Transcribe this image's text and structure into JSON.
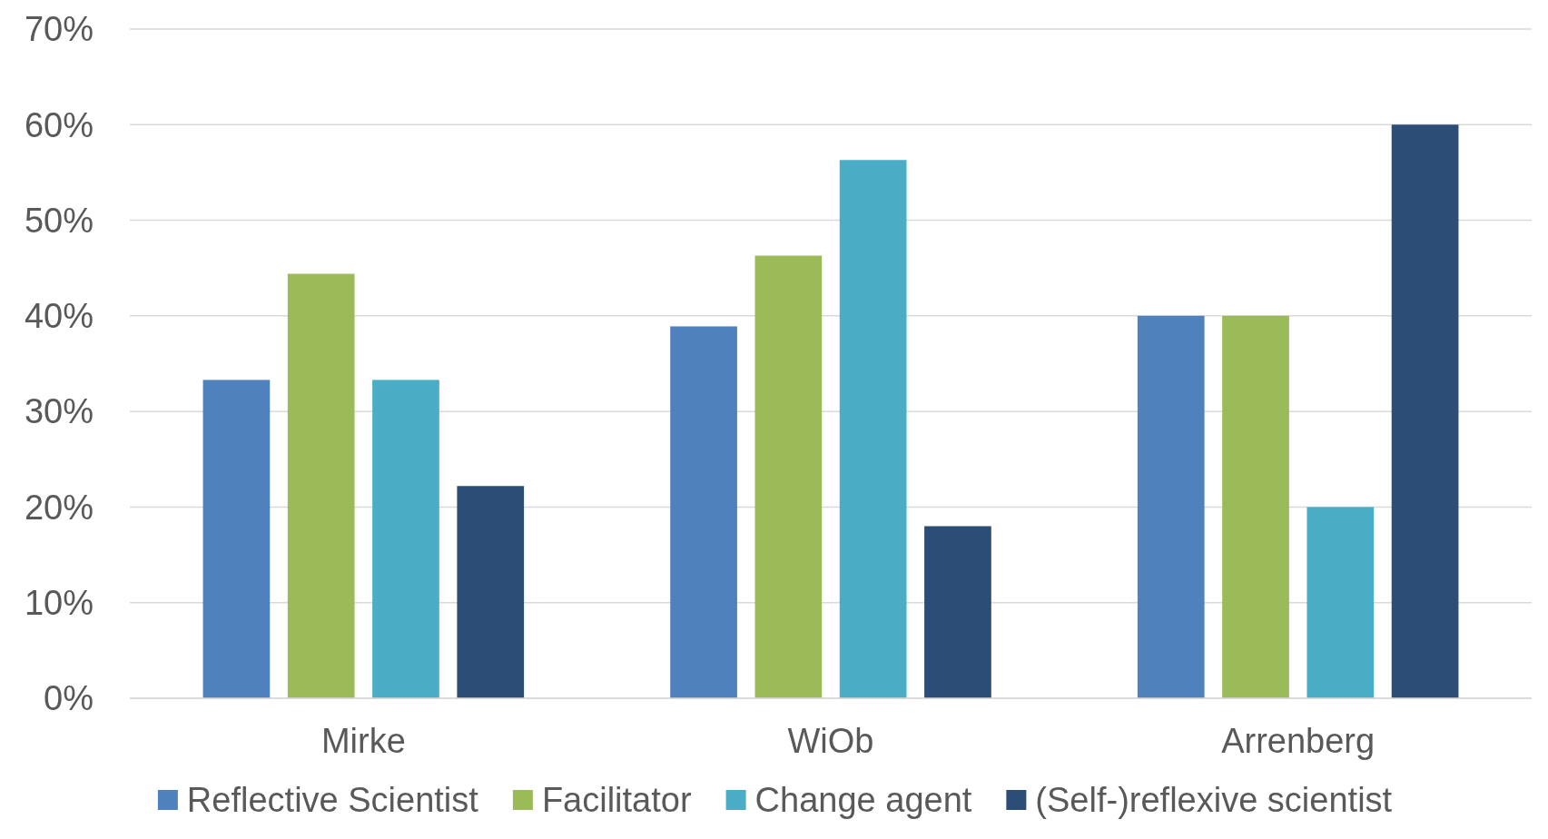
{
  "chart_data": {
    "type": "bar",
    "categories": [
      "Mirke",
      "WiOb",
      "Arrenberg"
    ],
    "series": [
      {
        "name": "Reflective Scientist",
        "color": "#4f81bd",
        "values": [
          33.3,
          38.9,
          40
        ]
      },
      {
        "name": "Facilitator",
        "color": "#9bbb59",
        "values": [
          44.4,
          46.3,
          40
        ]
      },
      {
        "name": "Change agent",
        "color": "#4bacc6",
        "values": [
          33.3,
          56.3,
          20
        ]
      },
      {
        "name": "(Self-)reflexive scientist",
        "color": "#2c4d75",
        "values": [
          22.2,
          18,
          60
        ]
      }
    ],
    "ylim": [
      0,
      70
    ],
    "yticks": [
      {
        "value": 0,
        "label": "0%"
      },
      {
        "value": 10,
        "label": "10%"
      },
      {
        "value": 20,
        "label": "20%"
      },
      {
        "value": 30,
        "label": "30%"
      },
      {
        "value": 40,
        "label": "40%"
      },
      {
        "value": 50,
        "label": "50%"
      },
      {
        "value": 60,
        "label": "60%"
      },
      {
        "value": 70,
        "label": "70%"
      }
    ],
    "grid": "y",
    "legend": "bottom"
  }
}
